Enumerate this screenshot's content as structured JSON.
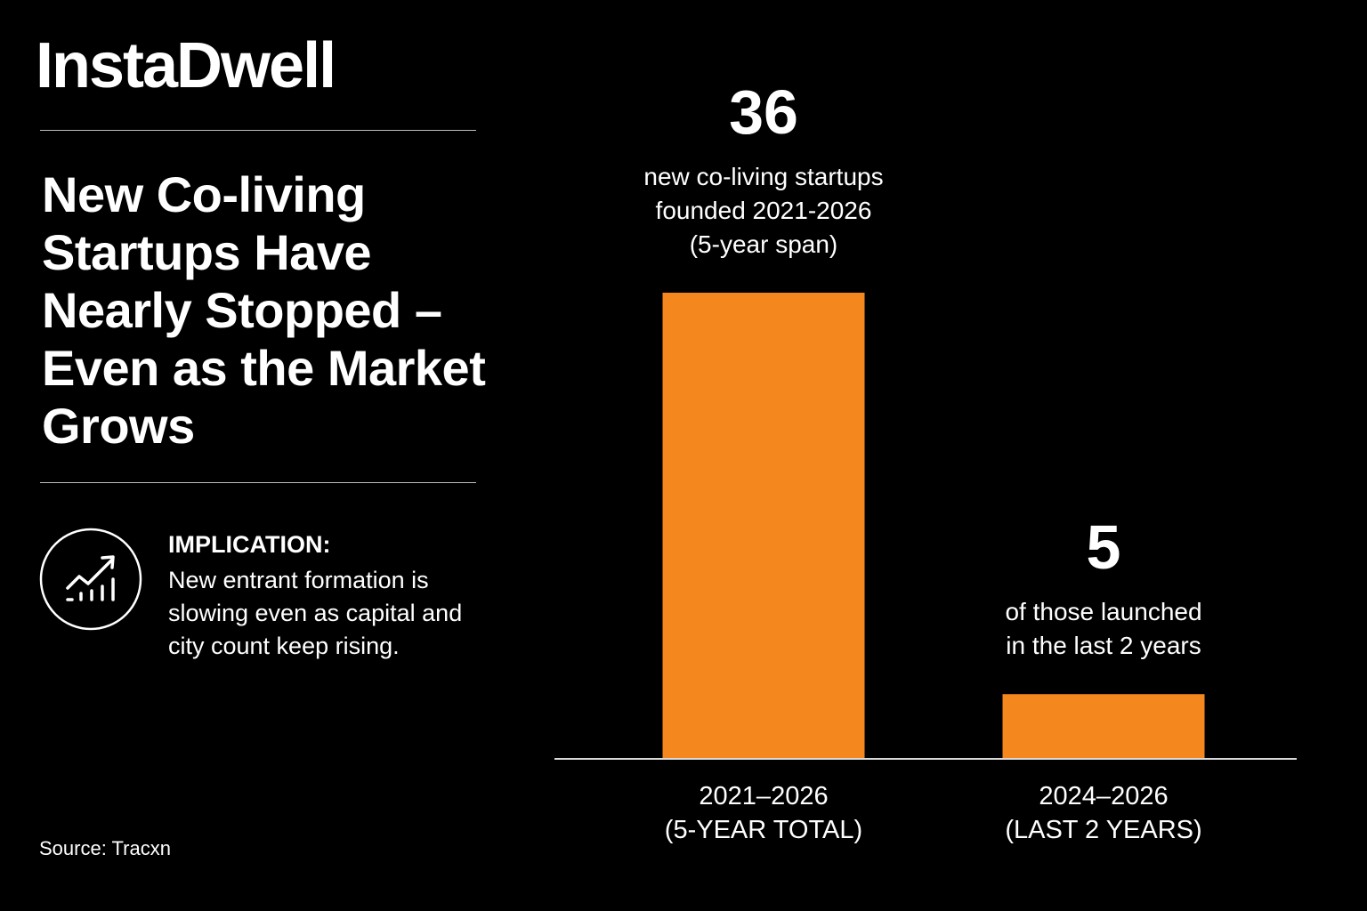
{
  "brand": "InstaDwell",
  "headline": "New Co-living Startups Have Nearly Stopped – Even as the Market Grows",
  "implication": {
    "title": "IMPLICATION:",
    "text": "New entrant formation is slowing even as capital and city count keep rising.",
    "icon": "trend-up-chart-icon"
  },
  "source": "Source: Tracxn",
  "colors": {
    "background": "#000000",
    "text": "#ffffff",
    "bar": "#f5871f",
    "rule": "#bdbdbd"
  },
  "chart_data": {
    "type": "bar",
    "categories": [
      [
        "2021–2026",
        "(5-YEAR TOTAL)"
      ],
      [
        "2024–2026",
        "(LAST 2 YEARS)"
      ]
    ],
    "values": [
      36,
      5
    ],
    "data_labels": [
      "36",
      "5"
    ],
    "annotations": [
      [
        "new co-living startups",
        "founded 2021-2026",
        "(5-year span)"
      ],
      [
        "of those launched",
        "in the last 2 years"
      ]
    ],
    "ylim": [
      0,
      36
    ],
    "grid": false
  }
}
